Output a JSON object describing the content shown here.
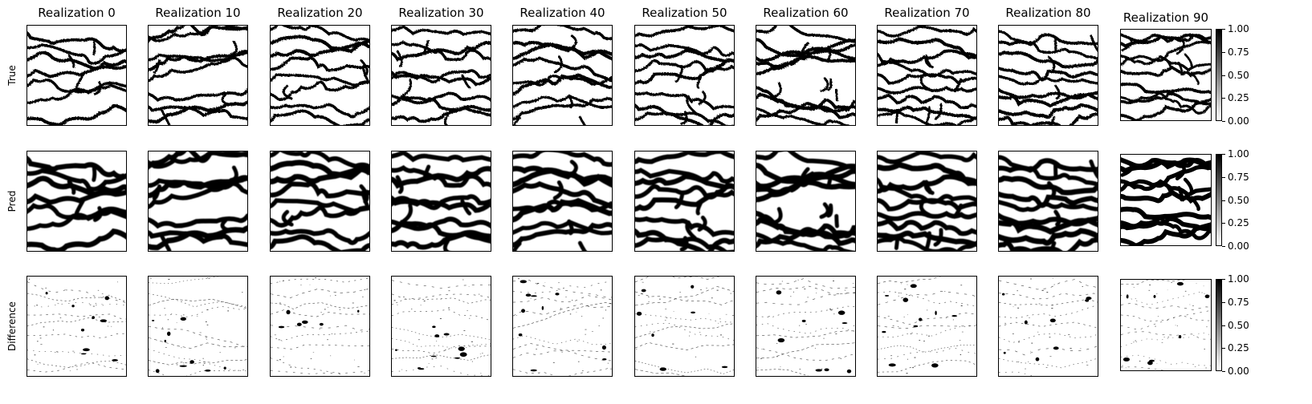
{
  "chart_data": {
    "type": "heatmap",
    "title": "",
    "columns": [
      "Realization 0",
      "Realization 10",
      "Realization 20",
      "Realization 30",
      "Realization 40",
      "Realization 50",
      "Realization 60",
      "Realization 70",
      "Realization 80",
      "Realization 90"
    ],
    "rows": [
      "True",
      "Pred",
      "Difference"
    ],
    "colormap": "gray_r",
    "colorbar": {
      "ticks": [
        "0.00",
        "0.25",
        "0.50",
        "0.75",
        "1.00"
      ],
      "range": [
        0,
        1
      ]
    },
    "axes_ticks": "off",
    "colors": {
      "low": "#ffffff",
      "high": "#000000"
    }
  }
}
